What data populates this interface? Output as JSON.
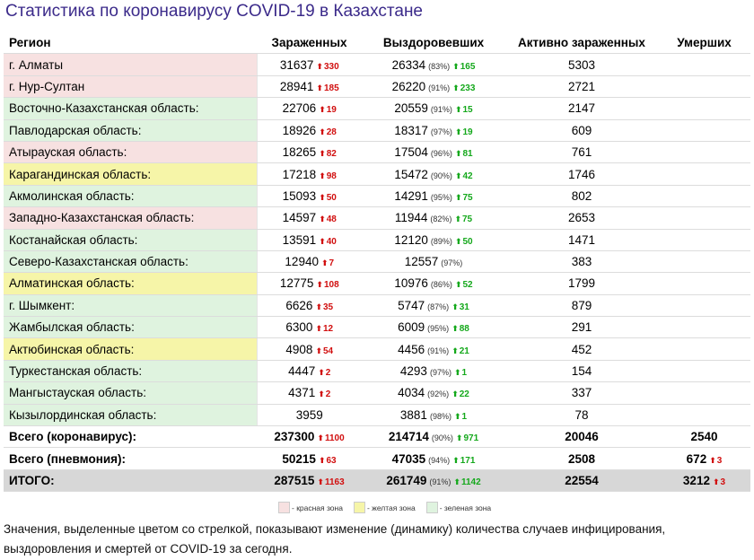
{
  "title": "Статистика по коронавирусу COVID-19 в Казахстане",
  "headers": {
    "region": "Регион",
    "infected": "Зараженных",
    "recovered": "Выздоровевших",
    "active": "Активно зараженных",
    "deaths": "Умерших"
  },
  "rows": [
    {
      "region": "г. Алматы",
      "zone": "red",
      "infected": "31637",
      "infected_delta": "330",
      "recovered": "26334",
      "recovered_pct": "(83%)",
      "recovered_delta": "165",
      "active": "5303"
    },
    {
      "region": "г. Нур-Султан",
      "zone": "red",
      "infected": "28941",
      "infected_delta": "185",
      "recovered": "26220",
      "recovered_pct": "(91%)",
      "recovered_delta": "233",
      "active": "2721"
    },
    {
      "region": "Восточно-Казахстанская область:",
      "zone": "green",
      "infected": "22706",
      "infected_delta": "19",
      "recovered": "20559",
      "recovered_pct": "(91%)",
      "recovered_delta": "15",
      "active": "2147"
    },
    {
      "region": "Павлодарская область:",
      "zone": "green",
      "infected": "18926",
      "infected_delta": "28",
      "recovered": "18317",
      "recovered_pct": "(97%)",
      "recovered_delta": "19",
      "active": "609"
    },
    {
      "region": "Атырауская область:",
      "zone": "red",
      "infected": "18265",
      "infected_delta": "82",
      "recovered": "17504",
      "recovered_pct": "(96%)",
      "recovered_delta": "81",
      "active": "761"
    },
    {
      "region": "Карагандинская область:",
      "zone": "yellow",
      "infected": "17218",
      "infected_delta": "98",
      "recovered": "15472",
      "recovered_pct": "(90%)",
      "recovered_delta": "42",
      "active": "1746"
    },
    {
      "region": "Акмолинская область:",
      "zone": "green",
      "infected": "15093",
      "infected_delta": "50",
      "recovered": "14291",
      "recovered_pct": "(95%)",
      "recovered_delta": "75",
      "active": "802"
    },
    {
      "region": "Западно-Казахстанская область:",
      "zone": "red",
      "infected": "14597",
      "infected_delta": "48",
      "recovered": "11944",
      "recovered_pct": "(82%)",
      "recovered_delta": "75",
      "active": "2653"
    },
    {
      "region": "Костанайская область:",
      "zone": "green",
      "infected": "13591",
      "infected_delta": "40",
      "recovered": "12120",
      "recovered_pct": "(89%)",
      "recovered_delta": "50",
      "active": "1471"
    },
    {
      "region": "Северо-Казахстанская область:",
      "zone": "green",
      "infected": "12940",
      "infected_delta": "7",
      "recovered": "12557",
      "recovered_pct": "(97%)",
      "recovered_delta": "",
      "active": "383"
    },
    {
      "region": "Алматинская область:",
      "zone": "yellow",
      "infected": "12775",
      "infected_delta": "108",
      "recovered": "10976",
      "recovered_pct": "(86%)",
      "recovered_delta": "52",
      "active": "1799"
    },
    {
      "region": "г. Шымкент:",
      "zone": "green",
      "infected": "6626",
      "infected_delta": "35",
      "recovered": "5747",
      "recovered_pct": "(87%)",
      "recovered_delta": "31",
      "active": "879"
    },
    {
      "region": "Жамбылская область:",
      "zone": "green",
      "infected": "6300",
      "infected_delta": "12",
      "recovered": "6009",
      "recovered_pct": "(95%)",
      "recovered_delta": "88",
      "active": "291"
    },
    {
      "region": "Актюбинская область:",
      "zone": "yellow",
      "infected": "4908",
      "infected_delta": "54",
      "recovered": "4456",
      "recovered_pct": "(91%)",
      "recovered_delta": "21",
      "active": "452"
    },
    {
      "region": "Туркестанская область:",
      "zone": "green",
      "infected": "4447",
      "infected_delta": "2",
      "recovered": "4293",
      "recovered_pct": "(97%)",
      "recovered_delta": "1",
      "active": "154"
    },
    {
      "region": "Мангыстауская область:",
      "zone": "green",
      "infected": "4371",
      "infected_delta": "2",
      "recovered": "4034",
      "recovered_pct": "(92%)",
      "recovered_delta": "22",
      "active": "337"
    },
    {
      "region": "Кызылординская область:",
      "zone": "green",
      "infected": "3959",
      "infected_delta": "",
      "recovered": "3881",
      "recovered_pct": "(98%)",
      "recovered_delta": "1",
      "active": "78"
    }
  ],
  "totals": [
    {
      "label": "Всего (коронавирус):",
      "infected": "237300",
      "infected_delta": "1100",
      "recovered": "214714",
      "recovered_pct": "(90%)",
      "recovered_delta": "971",
      "active": "20046",
      "deaths": "2540",
      "deaths_delta": ""
    },
    {
      "label": "Всего (пневмония):",
      "infected": "50215",
      "infected_delta": "63",
      "recovered": "47035",
      "recovered_pct": "(94%)",
      "recovered_delta": "171",
      "active": "2508",
      "deaths": "672",
      "deaths_delta": "3"
    },
    {
      "label": "ИТОГО:",
      "infected": "287515",
      "infected_delta": "1163",
      "recovered": "261749",
      "recovered_pct": "(91%)",
      "recovered_delta": "1142",
      "active": "22554",
      "deaths": "3212",
      "deaths_delta": "3"
    }
  ],
  "legend": [
    {
      "zone": "red",
      "label": "- красная зона"
    },
    {
      "zone": "yellow",
      "label": "- желтая зона"
    },
    {
      "zone": "green",
      "label": "- зеленая зона"
    }
  ],
  "footnote": "Значения, выделенные цветом со стрелкой, показывают изменение (динамику) количества случаев инфицирования, выздоровления и смертей от COVID-19 за сегодня.",
  "colors": {
    "title": "#3b2a8a",
    "zone_red": "#f7e1e1",
    "zone_yellow": "#f6f5a8",
    "zone_green": "#dff3df",
    "delta_up_red": "#d10e0e",
    "delta_up_green": "#14a81b",
    "grand_total_bg": "#d7d7d7"
  },
  "icons": {
    "delta_arrow": "up-arrow-icon"
  }
}
